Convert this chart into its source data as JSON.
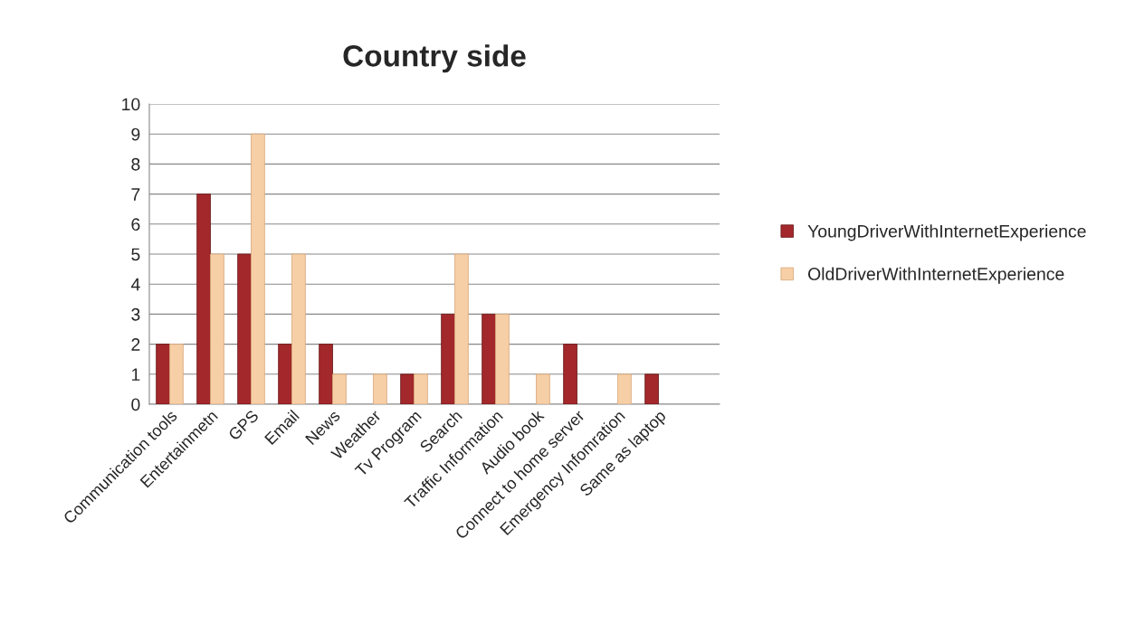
{
  "chart_data": {
    "type": "bar",
    "title": "Country side",
    "categories": [
      "Communication tools",
      "Entertainmetn",
      "GPS",
      "Email",
      "News",
      "Weather",
      "Tv Program",
      "Search",
      "Traffic Information",
      "Audio book",
      "Connect to home server",
      "Emergency Infomration",
      "Same as laptop",
      null
    ],
    "series": [
      {
        "name": "YoungDriverWithInternetExperience",
        "color": "#a3282b",
        "values": [
          2,
          7,
          5,
          2,
          2,
          null,
          1,
          3,
          3,
          null,
          2,
          null,
          1,
          null
        ]
      },
      {
        "name": "OldDriverWithInternetExperience",
        "color": "#f7cfa6",
        "values": [
          2,
          5,
          9,
          5,
          1,
          1,
          1,
          5,
          3,
          1,
          null,
          1,
          null,
          null
        ]
      }
    ],
    "ylim": [
      0,
      10
    ],
    "yticks": [
      0,
      1,
      2,
      3,
      4,
      5,
      6,
      7,
      8,
      9,
      10
    ],
    "grid": "y",
    "legend": "right"
  }
}
